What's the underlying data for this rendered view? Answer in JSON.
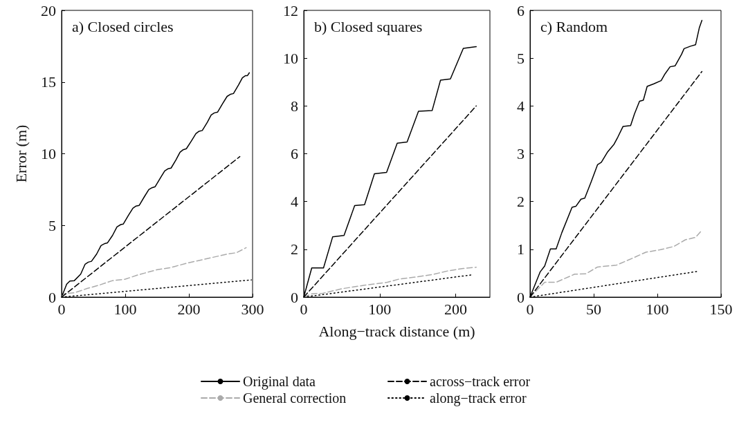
{
  "chart_data": [
    {
      "type": "line",
      "title": "a) Closed circles",
      "ylabel": "Error (m)",
      "xlim": [
        0,
        300
      ],
      "xticks": [
        0,
        100,
        200,
        300
      ],
      "ylim": [
        0,
        20
      ],
      "yticks": [
        0,
        5,
        10,
        15,
        20
      ],
      "legend": "bottom",
      "series": [
        {
          "name": "Original data",
          "color": "#000000",
          "line_style": "solid",
          "x": [
            0,
            8,
            13,
            20,
            30,
            37,
            42,
            47,
            55,
            62,
            68,
            72,
            80,
            87,
            93,
            97,
            105,
            112,
            117,
            122,
            130,
            137,
            142,
            147,
            155,
            162,
            167,
            172,
            180,
            186,
            191,
            196,
            204,
            211,
            216,
            221,
            229,
            235,
            240,
            245,
            253,
            260,
            265,
            270,
            278,
            284,
            289,
            292,
            295
          ],
          "values": [
            0,
            0.9,
            1.12,
            1.15,
            1.6,
            2.3,
            2.44,
            2.5,
            3.0,
            3.6,
            3.74,
            3.78,
            4.3,
            4.9,
            5.06,
            5.1,
            5.7,
            6.2,
            6.35,
            6.4,
            7.0,
            7.5,
            7.63,
            7.7,
            8.3,
            8.8,
            8.95,
            9.0,
            9.6,
            10.1,
            10.28,
            10.35,
            10.9,
            11.4,
            11.57,
            11.62,
            12.2,
            12.7,
            12.85,
            12.9,
            13.5,
            14.0,
            14.14,
            14.2,
            14.8,
            15.3,
            15.45,
            15.45,
            15.65
          ]
        },
        {
          "name": "General correction",
          "color": "#aaaaaa",
          "line_style": "dashed",
          "x": [
            0,
            5,
            20,
            40,
            60,
            80,
            100,
            120,
            149,
            170,
            200,
            230,
            260,
            275,
            290
          ],
          "values": [
            0,
            0.25,
            0.3,
            0.6,
            0.85,
            1.15,
            1.25,
            1.55,
            1.9,
            2.05,
            2.4,
            2.7,
            3.0,
            3.1,
            3.45
          ]
        },
        {
          "name": "across−track error",
          "color": "#000000",
          "line_style": "dashed",
          "x": [
            0,
            280
          ],
          "values": [
            0,
            9.8
          ]
        },
        {
          "name": "along−track error",
          "color": "#000000",
          "line_style": "dotted",
          "x": [
            0,
            298
          ],
          "values": [
            0,
            1.2
          ]
        }
      ]
    },
    {
      "type": "line",
      "title": "b) Closed squares",
      "xlabel": "Along−track distance (m)",
      "xlim": [
        0,
        245
      ],
      "xticks": [
        0,
        100,
        200
      ],
      "ylim": [
        0,
        12
      ],
      "yticks": [
        0,
        2,
        4,
        6,
        8,
        10,
        12
      ],
      "series": [
        {
          "color": "#000000",
          "line_style": "solid",
          "x": [
            0,
            10.5,
            26,
            38,
            53,
            67,
            80,
            93,
            109,
            123,
            136,
            151,
            169,
            180,
            193,
            210,
            227
          ],
          "values": [
            0,
            1.22,
            1.22,
            2.52,
            2.58,
            3.83,
            3.87,
            5.16,
            5.22,
            6.44,
            6.49,
            7.78,
            7.81,
            9.08,
            9.13,
            10.41,
            10.48
          ]
        },
        {
          "color": "#aaaaaa",
          "line_style": "dashed",
          "x": [
            0,
            11,
            25,
            50,
            80,
            110,
            125,
            150,
            170,
            190,
            210,
            227
          ],
          "values": [
            0,
            0.14,
            0.16,
            0.35,
            0.5,
            0.62,
            0.75,
            0.85,
            0.95,
            1.1,
            1.2,
            1.25
          ]
        },
        {
          "color": "#000000",
          "line_style": "dashed",
          "x": [
            0,
            227
          ],
          "values": [
            0,
            8.0
          ]
        },
        {
          "color": "#000000",
          "line_style": "dotted",
          "x": [
            0,
            223
          ],
          "values": [
            0,
            0.94
          ]
        }
      ]
    },
    {
      "type": "line",
      "title": "c) Random",
      "xlim": [
        0,
        150
      ],
      "xticks": [
        0,
        50,
        100,
        150
      ],
      "ylim": [
        0,
        6
      ],
      "yticks": [
        0,
        1,
        2,
        3,
        4,
        5,
        6
      ],
      "series": [
        {
          "color": "#000000",
          "line_style": "solid",
          "x": [
            0,
            8,
            11.5,
            16,
            20.5,
            25,
            33,
            36,
            40,
            43,
            48,
            53,
            56,
            61,
            66,
            69,
            73,
            79,
            82,
            86,
            89,
            92,
            97,
            103,
            106,
            110,
            114,
            119,
            121,
            126,
            130,
            133,
            135
          ],
          "values": [
            0,
            0.53,
            0.65,
            1.01,
            1.01,
            1.35,
            1.88,
            1.9,
            2.05,
            2.07,
            2.41,
            2.77,
            2.82,
            3.04,
            3.2,
            3.35,
            3.57,
            3.59,
            3.83,
            4.1,
            4.12,
            4.41,
            4.46,
            4.53,
            4.67,
            4.82,
            4.84,
            5.08,
            5.2,
            5.25,
            5.28,
            5.64,
            5.79
          ]
        },
        {
          "color": "#aaaaaa",
          "line_style": "dashed",
          "x": [
            0,
            11.5,
            20.5,
            35,
            44,
            53,
            68,
            81,
            91,
            102,
            113,
            122,
            130,
            135
          ],
          "values": [
            0,
            0.31,
            0.31,
            0.48,
            0.49,
            0.63,
            0.67,
            0.82,
            0.94,
            0.99,
            1.06,
            1.2,
            1.25,
            1.4
          ]
        },
        {
          "color": "#000000",
          "line_style": "dashed",
          "x": [
            0,
            135
          ],
          "values": [
            0,
            4.72
          ]
        },
        {
          "color": "#000000",
          "line_style": "dotted",
          "x": [
            0,
            132
          ],
          "values": [
            0,
            0.54
          ]
        }
      ]
    }
  ]
}
